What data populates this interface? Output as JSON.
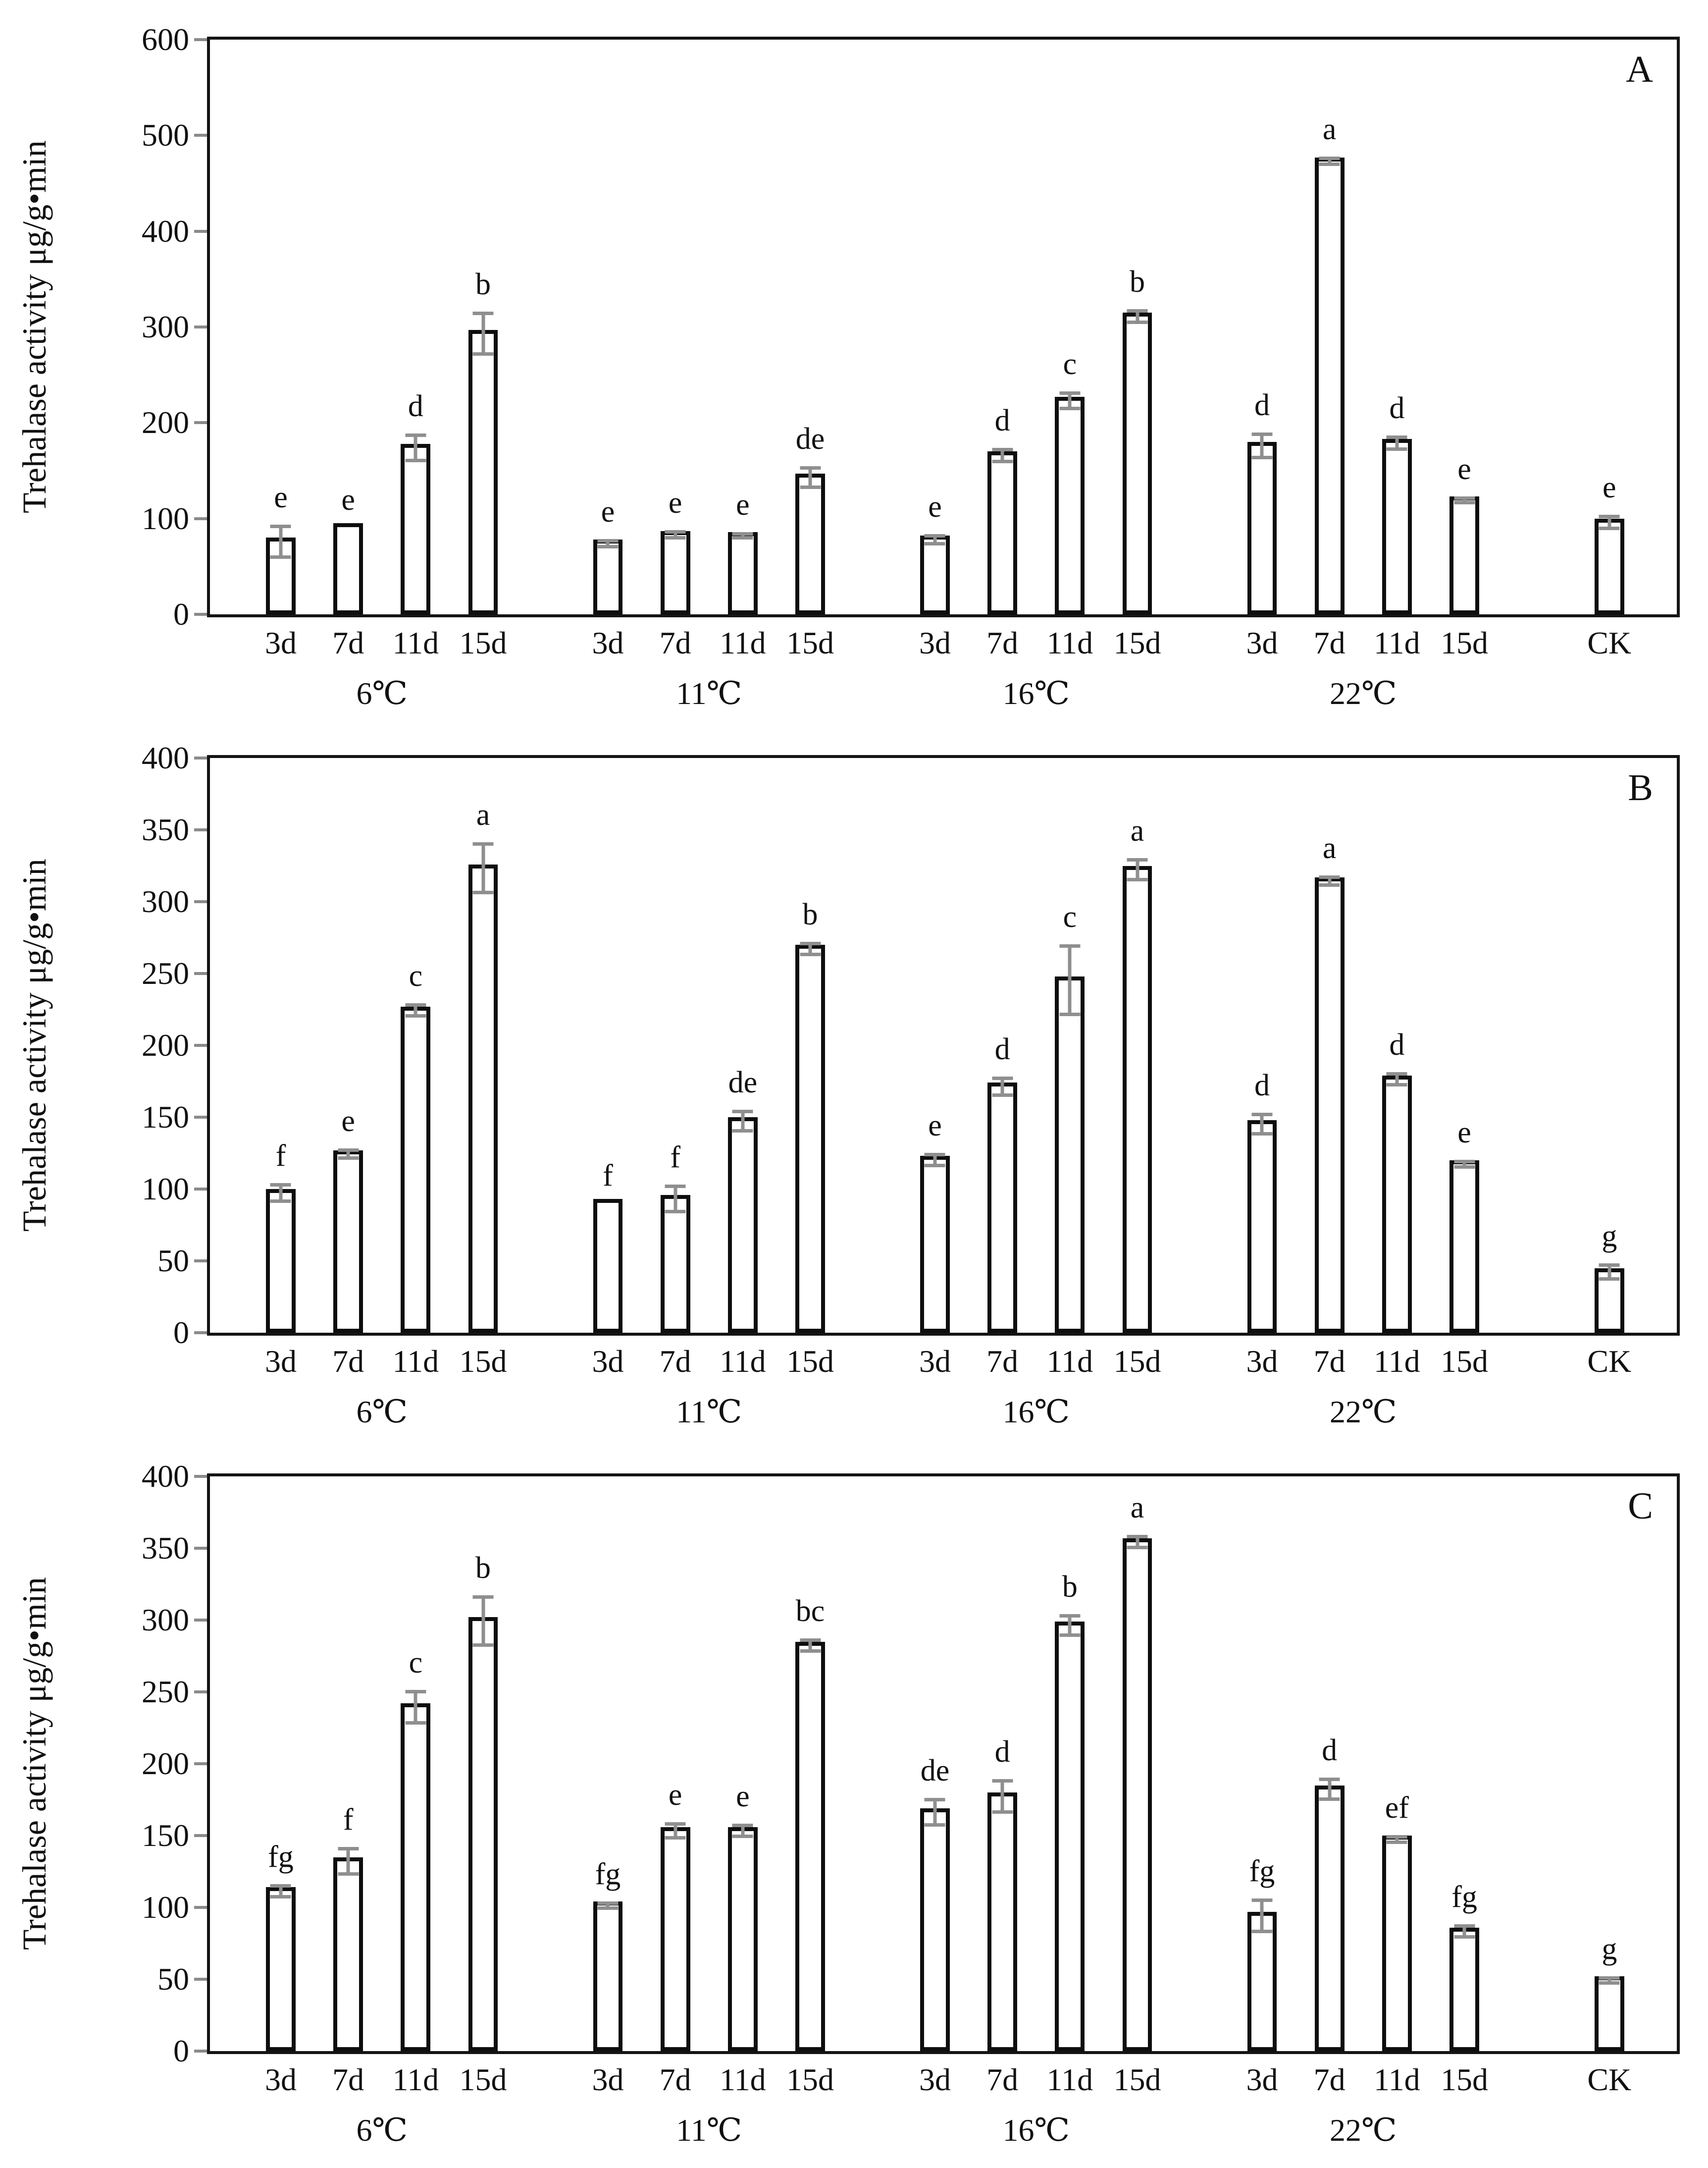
{
  "figure": {
    "description": "Three stacked bar charts of trehalase activity under different temperatures and durations"
  },
  "chart_data": [
    {
      "panel_label": "A",
      "type": "bar",
      "ylabel": "Trehalase activity μg/g•min",
      "ylim": [
        0,
        600
      ],
      "yticks": [
        0,
        100,
        200,
        300,
        400,
        500,
        600
      ],
      "grid": false,
      "bar_fill": "#ffffff",
      "bar_stroke": "#0e0e0e",
      "error_bar_color": "#8f8f8f",
      "groups": [
        {
          "label": "6℃",
          "categories": [
            "3d",
            "7d",
            "11d",
            "15d"
          ],
          "values": [
            80,
            95,
            178,
            297
          ],
          "errors": [
            18,
            null,
            15,
            23
          ],
          "letters": [
            "e",
            "e",
            "d",
            "b"
          ]
        },
        {
          "label": "11℃",
          "categories": [
            "3d",
            "7d",
            "11d",
            "15d"
          ],
          "values": [
            78,
            87,
            86,
            147
          ],
          "errors": [
            5,
            5,
            4,
            12
          ],
          "letters": [
            "e",
            "e",
            "e",
            "de"
          ]
        },
        {
          "label": "16℃",
          "categories": [
            "3d",
            "7d",
            "11d",
            "15d"
          ],
          "values": [
            82,
            170,
            227,
            315
          ],
          "errors": [
            6,
            8,
            10,
            8
          ],
          "letters": [
            "e",
            "d",
            "c",
            "b"
          ]
        },
        {
          "label": "22℃",
          "categories": [
            "3d",
            "7d",
            "11d",
            "15d"
          ],
          "values": [
            180,
            477,
            183,
            123
          ],
          "errors": [
            14,
            5,
            8,
            4
          ],
          "letters": [
            "d",
            "a",
            "d",
            "e"
          ]
        },
        {
          "label": "",
          "categories": [
            "CK"
          ],
          "values": [
            100
          ],
          "errors": [
            8
          ],
          "letters": [
            "e"
          ]
        }
      ]
    },
    {
      "panel_label": "B",
      "type": "bar",
      "ylabel": "Trehalase activity μg/g•min",
      "ylim": [
        0,
        400
      ],
      "yticks": [
        0,
        50,
        100,
        150,
        200,
        250,
        300,
        350,
        400
      ],
      "grid": false,
      "bar_fill": "#ffffff",
      "bar_stroke": "#0e0e0e",
      "error_bar_color": "#8f8f8f",
      "groups": [
        {
          "label": "6℃",
          "categories": [
            "3d",
            "7d",
            "11d",
            "15d"
          ],
          "values": [
            100,
            127,
            227,
            326
          ],
          "errors": [
            7,
            4,
            5,
            18
          ],
          "letters": [
            "f",
            "e",
            "c",
            "a"
          ]
        },
        {
          "label": "11℃",
          "categories": [
            "3d",
            "7d",
            "11d",
            "15d"
          ],
          "values": [
            93,
            96,
            150,
            270
          ],
          "errors": [
            null,
            10,
            8,
            5
          ],
          "letters": [
            "f",
            "f",
            "de",
            "b"
          ]
        },
        {
          "label": "16℃",
          "categories": [
            "3d",
            "7d",
            "11d",
            "15d"
          ],
          "values": [
            123,
            174,
            248,
            325
          ],
          "errors": [
            5,
            7,
            25,
            8
          ],
          "letters": [
            "e",
            "d",
            "c",
            "a"
          ]
        },
        {
          "label": "22℃",
          "categories": [
            "3d",
            "7d",
            "11d",
            "15d"
          ],
          "values": [
            148,
            317,
            179,
            120
          ],
          "errors": [
            8,
            4,
            5,
            3
          ],
          "letters": [
            "d",
            "a",
            "d",
            "e"
          ]
        },
        {
          "label": "",
          "categories": [
            "CK"
          ],
          "values": [
            45
          ],
          "errors": [
            6
          ],
          "letters": [
            "g"
          ]
        }
      ]
    },
    {
      "panel_label": "C",
      "type": "bar",
      "ylabel": "Trehalase activity μg/g•min",
      "ylim": [
        0,
        400
      ],
      "yticks": [
        0,
        50,
        100,
        150,
        200,
        250,
        300,
        350,
        400
      ],
      "grid": false,
      "bar_fill": "#ffffff",
      "bar_stroke": "#0e0e0e",
      "error_bar_color": "#8f8f8f",
      "groups": [
        {
          "label": "6℃",
          "categories": [
            "3d",
            "7d",
            "11d",
            "15d"
          ],
          "values": [
            114,
            135,
            242,
            302
          ],
          "errors": [
            5,
            10,
            12,
            18
          ],
          "letters": [
            "fg",
            "f",
            "c",
            "b"
          ]
        },
        {
          "label": "11℃",
          "categories": [
            "3d",
            "7d",
            "11d",
            "15d"
          ],
          "values": [
            104,
            156,
            156,
            285
          ],
          "errors": [
            3,
            6,
            5,
            5
          ],
          "letters": [
            "fg",
            "e",
            "e",
            "bc"
          ]
        },
        {
          "label": "16℃",
          "categories": [
            "3d",
            "7d",
            "11d",
            "15d"
          ],
          "values": [
            169,
            180,
            299,
            357
          ],
          "errors": [
            10,
            12,
            8,
            5
          ],
          "letters": [
            "de",
            "d",
            "b",
            "a"
          ]
        },
        {
          "label": "22℃",
          "categories": [
            "3d",
            "7d",
            "11d",
            "15d"
          ],
          "values": [
            97,
            185,
            150,
            86
          ],
          "errors": [
            12,
            8,
            3,
            5
          ],
          "letters": [
            "fg",
            "d",
            "ef",
            "fg"
          ]
        },
        {
          "label": "",
          "categories": [
            "CK"
          ],
          "values": [
            52
          ],
          "errors": [
            3
          ],
          "letters": [
            "g"
          ]
        }
      ]
    }
  ]
}
